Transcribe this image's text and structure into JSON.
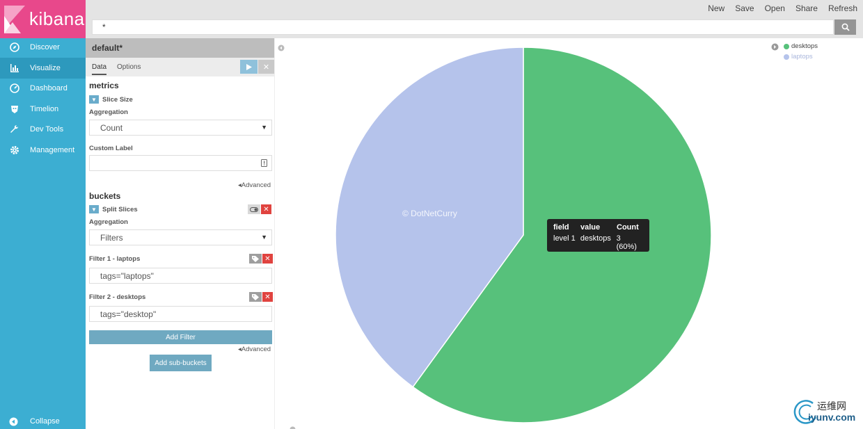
{
  "app": {
    "logo_text": "kibana",
    "brand_color": "#e8488b",
    "nav_color": "#3caed2"
  },
  "nav": {
    "items": [
      {
        "label": "Discover",
        "icon": "compass-icon"
      },
      {
        "label": "Visualize",
        "icon": "bar-chart-icon",
        "active": true
      },
      {
        "label": "Dashboard",
        "icon": "dashboard-icon"
      },
      {
        "label": "Timelion",
        "icon": "timelion-icon"
      },
      {
        "label": "Dev Tools",
        "icon": "wrench-icon"
      },
      {
        "label": "Management",
        "icon": "gear-icon"
      }
    ],
    "collapse_label": "Collapse"
  },
  "topbar": {
    "menu": [
      "New",
      "Save",
      "Open",
      "Share",
      "Refresh"
    ],
    "query": "*"
  },
  "editor": {
    "title": "default*",
    "tabs": [
      "Data",
      "Options"
    ],
    "metrics": {
      "heading": "metrics",
      "agg_title": "Slice Size",
      "aggregation_label": "Aggregation",
      "aggregation_value": "Count",
      "custom_label_label": "Custom Label",
      "custom_label_value": "",
      "advanced_label": "Advanced"
    },
    "buckets": {
      "heading": "buckets",
      "agg_title": "Split Slices",
      "aggregation_label": "Aggregation",
      "aggregation_value": "Filters",
      "filters": [
        {
          "label": "Filter 1 - laptops",
          "value": "tags=\"laptops\""
        },
        {
          "label": "Filter 2 - desktops",
          "value": "tags=\"desktop\""
        }
      ],
      "add_filter_label": "Add Filter",
      "advanced_label": "Advanced",
      "add_sub_buckets_label": "Add sub-buckets"
    }
  },
  "chart_data": {
    "type": "pie",
    "series": [
      {
        "label": "desktops",
        "value": 3,
        "percent": 60,
        "color": "#57c17b"
      },
      {
        "label": "laptops",
        "value": 2,
        "percent": 40,
        "color": "#b5c3eb"
      }
    ],
    "legend_position": "top-right"
  },
  "tooltip": {
    "headers": [
      "field",
      "value",
      "Count"
    ],
    "row": [
      "level 1",
      "desktops",
      "3 (60%)"
    ]
  },
  "watermarks": {
    "chart_copyright": "© DotNetCurry",
    "site_cn": "运维网",
    "site_url": "iyunv.com"
  }
}
